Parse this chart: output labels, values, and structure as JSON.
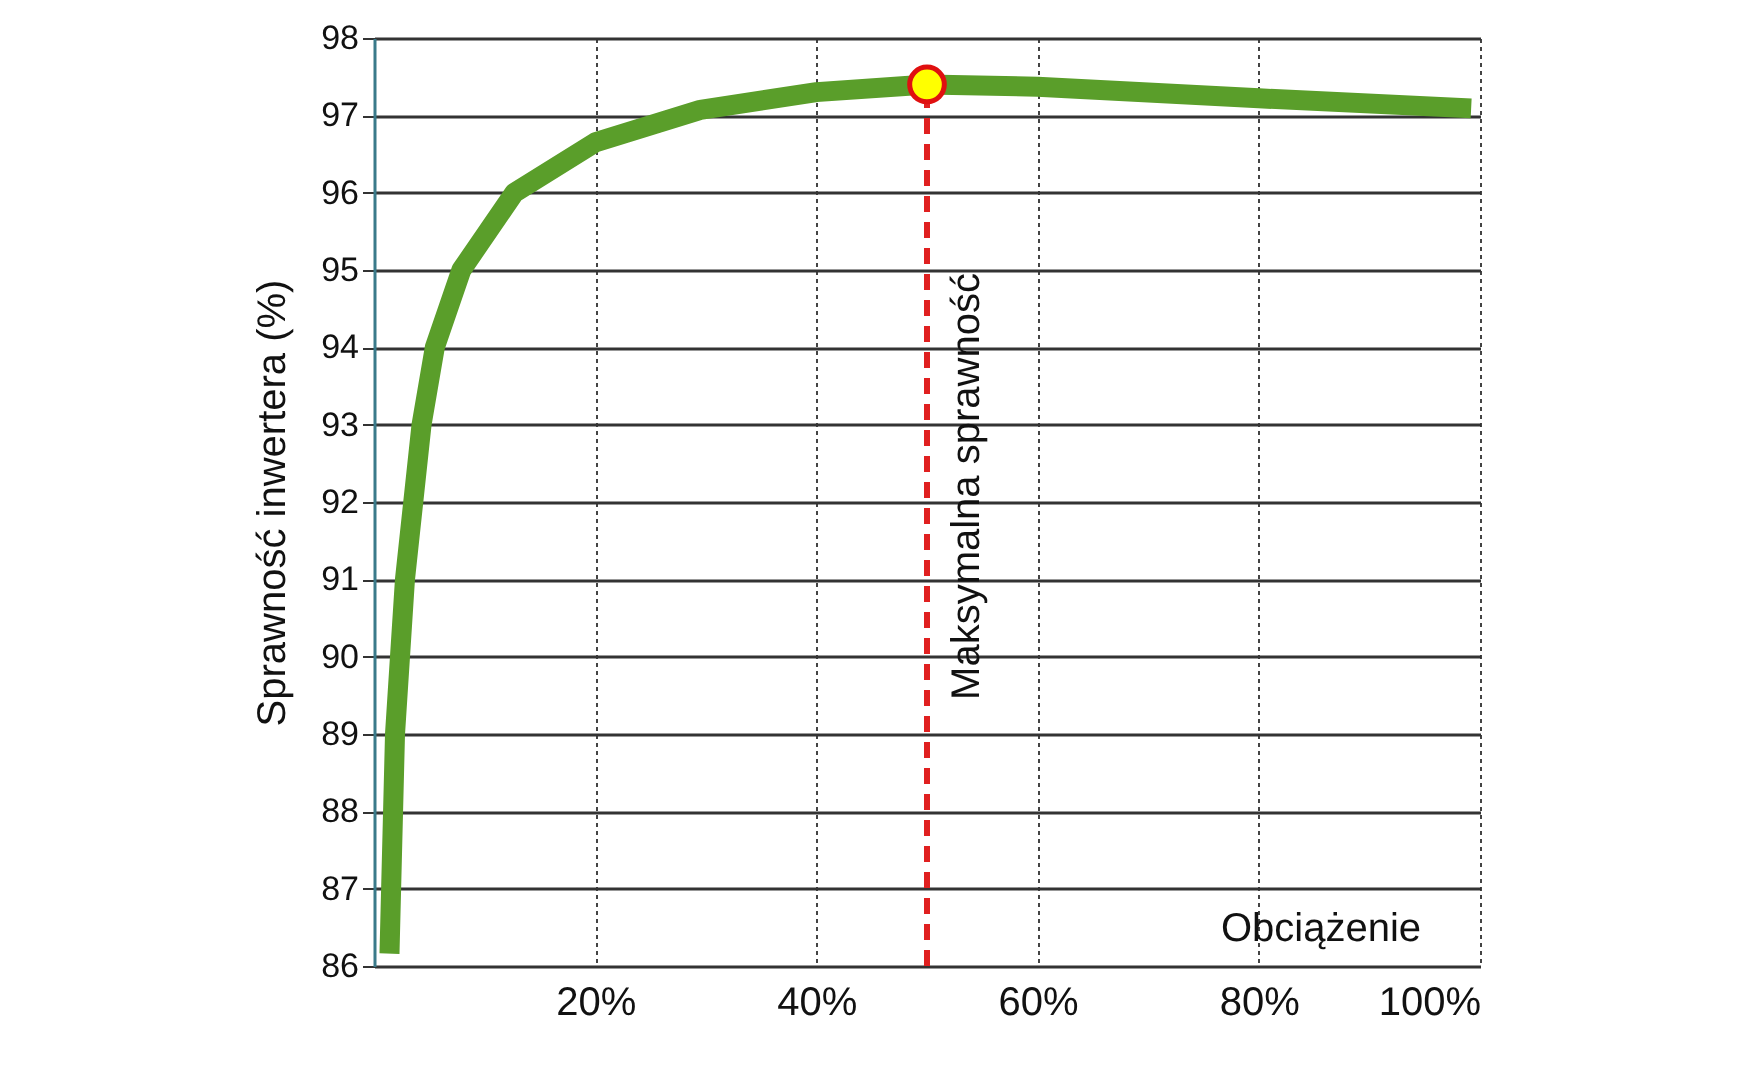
{
  "chart_data": {
    "type": "line",
    "xlabel": "Obciążenie",
    "ylabel": "Sprawność inwertera (%)",
    "xlim": [
      0,
      100
    ],
    "ylim": [
      86,
      98
    ],
    "xticks": [
      {
        "value": 20,
        "label": "20%"
      },
      {
        "value": 40,
        "label": "40%"
      },
      {
        "value": 60,
        "label": "60%"
      },
      {
        "value": 80,
        "label": "80%"
      },
      {
        "value": 100,
        "label": "100%"
      }
    ],
    "yticks": [
      86,
      87,
      88,
      89,
      90,
      91,
      92,
      93,
      94,
      95,
      96,
      97,
      98
    ],
    "grid": true,
    "series": [
      {
        "color": "#5a9e2a",
        "marker": "none",
        "line_style": "solid",
        "x": [
          1.4,
          1.9,
          2.8,
          4.3,
          5.5,
          7.9,
          12.7,
          20,
          29.5,
          40,
          50,
          60,
          80,
          99.2
        ],
        "values": [
          86.16,
          89,
          91,
          93,
          94,
          95,
          96,
          96.65,
          97.07,
          97.3,
          97.4,
          97.37,
          97.22,
          97.09
        ]
      },
      {
        "type": "scatter",
        "color": "#ffff00",
        "marker": "circle",
        "x": [
          50
        ],
        "values": [
          97.4
        ]
      }
    ],
    "ref_lines": [
      {
        "axis": "x",
        "value": 50,
        "label": "Maksymalna sprawność",
        "color": "#e02020",
        "line_style": "dashed"
      }
    ]
  }
}
